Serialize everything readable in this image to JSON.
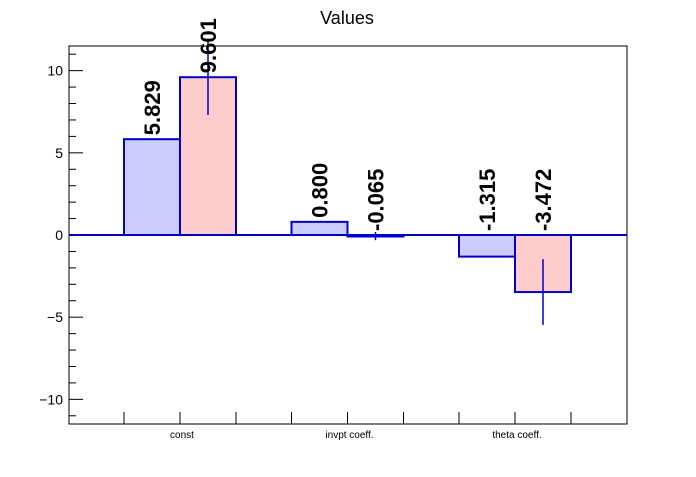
{
  "chart_data": {
    "type": "bar",
    "title": "Values",
    "xlabel": "",
    "ylabel": "",
    "categories": [
      "const",
      "invpt coeff.",
      "theta coeff."
    ],
    "ylim": [
      -11.5,
      11.5
    ],
    "y_ticks": [
      -10,
      -5,
      0,
      5,
      10
    ],
    "y_tick_labels": [
      "−10",
      "−5",
      "0",
      "5",
      "10"
    ],
    "grid": false,
    "legend": "none",
    "series": [
      {
        "values": [
          5.829,
          0.8,
          -1.315
        ],
        "labels": [
          "5.829",
          "0.800",
          "-1.315"
        ],
        "errors": [
          0,
          0,
          0
        ],
        "fill": "#ccccff",
        "stroke": "#0000cc"
      },
      {
        "values": [
          9.601,
          -0.065,
          -3.472
        ],
        "labels": [
          "9.601",
          "-0.065",
          "-3.472"
        ],
        "errors": [
          2.3,
          0.25,
          2.0
        ],
        "fill": "#ffcccc",
        "stroke": "#0000cc"
      }
    ],
    "colors": {
      "axis": "#000000",
      "zero_line": "#0000cc",
      "error_bar": "#0000cc"
    }
  }
}
